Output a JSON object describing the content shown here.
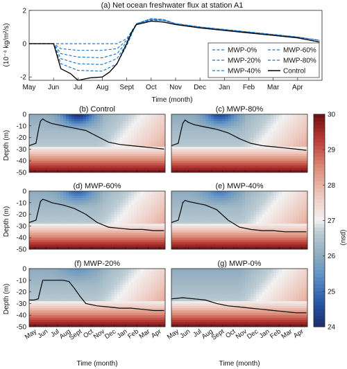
{
  "colors": {
    "control": "#000000",
    "mwp_dashed": "#1f78c8",
    "cmap_low": "#1e2d6b",
    "cmap_mid": "#f2f2f2",
    "cmap_high": "#6b0f12"
  },
  "chart_data": [
    {
      "type": "line",
      "title": "(a) Net ocean freshwater flux at station A1",
      "xlabel": "Time (month)",
      "ylabel": "(10⁻⁴ kg/m²/s)",
      "ylim": [
        -2.2,
        2
      ],
      "yticks": [
        -2,
        0,
        2
      ],
      "month_ticks": [
        "May",
        "Jun",
        "Jul",
        "Aug",
        "Sept",
        "Oct",
        "Nov",
        "Dec",
        "Jan",
        "Feb",
        "Mar",
        "Apr"
      ],
      "legend_position": "lower-right",
      "series": [
        {
          "name": "MWP-0%",
          "style": "dashed",
          "x": [
            0,
            1,
            1.3,
            2,
            3,
            3.6,
            4,
            4.4,
            5,
            5.5,
            6,
            7,
            8,
            9,
            10,
            11,
            11.9
          ],
          "y": [
            0,
            0,
            0,
            0,
            0,
            0,
            0.3,
            1.2,
            1.4,
            1.4,
            1.2,
            1.0,
            0.85,
            0.7,
            0.55,
            0.4,
            0.2
          ]
        },
        {
          "name": "MWP-20%",
          "style": "dashed",
          "x": [
            0,
            1,
            1.3,
            2,
            3,
            3.6,
            4,
            4.4,
            5,
            5.5,
            6,
            7,
            8,
            9,
            10,
            11,
            11.9
          ],
          "y": [
            0,
            0,
            -0.3,
            -0.4,
            -0.4,
            -0.3,
            0.2,
            1.2,
            1.5,
            1.45,
            1.2,
            1.0,
            0.85,
            0.7,
            0.55,
            0.4,
            0.2
          ]
        },
        {
          "name": "MWP-40%",
          "style": "dashed",
          "x": [
            0,
            1,
            1.3,
            2,
            3,
            3.6,
            4,
            4.4,
            5,
            5.5,
            6,
            7,
            8,
            9,
            10,
            11,
            11.9
          ],
          "y": [
            0,
            0,
            -0.6,
            -0.8,
            -0.85,
            -0.6,
            0.1,
            1.2,
            1.5,
            1.45,
            1.2,
            1.0,
            0.85,
            0.7,
            0.55,
            0.4,
            0.2
          ]
        },
        {
          "name": "MWP-60%",
          "style": "dashed",
          "x": [
            0,
            1,
            1.3,
            2,
            3,
            3.6,
            4,
            4.4,
            5,
            5.5,
            6,
            7,
            8,
            9,
            10,
            11,
            11.9
          ],
          "y": [
            0,
            0,
            -0.9,
            -1.2,
            -1.25,
            -0.9,
            0.0,
            1.2,
            1.45,
            1.4,
            1.2,
            1.0,
            0.85,
            0.7,
            0.55,
            0.4,
            0.2
          ]
        },
        {
          "name": "MWP-80%",
          "style": "dashed",
          "x": [
            0,
            1,
            1.3,
            2,
            3,
            3.6,
            4,
            4.4,
            5,
            5.5,
            6,
            7,
            8,
            9,
            10,
            11,
            11.9
          ],
          "y": [
            0,
            0,
            -1.2,
            -1.6,
            -1.65,
            -1.2,
            -0.1,
            1.2,
            1.45,
            1.4,
            1.2,
            1.0,
            0.85,
            0.7,
            0.55,
            0.4,
            0.2
          ]
        },
        {
          "name": "Control",
          "style": "solid",
          "x": [
            0,
            1,
            1.3,
            1.7,
            2,
            2.5,
            3,
            3.3,
            3.6,
            3.8,
            4,
            4.2,
            4.4,
            5,
            5.5,
            6,
            7,
            8,
            9,
            10,
            11,
            11.9
          ],
          "y": [
            0,
            0,
            -1.5,
            -1.8,
            -2.2,
            -2.05,
            -2.0,
            -1.7,
            -1.2,
            -0.6,
            0.0,
            0.7,
            1.15,
            1.35,
            1.3,
            1.15,
            0.95,
            0.8,
            0.65,
            0.5,
            0.35,
            0.1
          ]
        }
      ]
    },
    {
      "type": "heatmap",
      "panels": [
        {
          "title": "(b) Control",
          "mld_x": [
            0,
            0.3,
            0.6,
            0.85,
            1.0,
            1.2,
            1.5,
            2,
            3,
            4,
            5,
            6,
            7,
            8,
            9,
            10,
            11,
            11.9
          ],
          "mld_y": [
            -27,
            -26,
            -25,
            -12,
            -6,
            -4,
            -6,
            -8,
            -10,
            -12,
            -14,
            -19,
            -24,
            -26,
            -27,
            -28,
            -29,
            -30
          ]
        },
        {
          "title": "(c) MWP-80%",
          "mld_x": [
            0,
            0.3,
            0.6,
            0.85,
            1.0,
            1.2,
            1.5,
            2,
            3,
            4,
            5,
            6,
            7,
            8,
            9,
            10,
            11,
            11.9
          ],
          "mld_y": [
            -27,
            -26,
            -25,
            -14,
            -8,
            -5,
            -7,
            -9,
            -11,
            -13,
            -16,
            -21,
            -25,
            -27,
            -28,
            -29,
            -30,
            -31
          ]
        },
        {
          "title": "(d) MWP-60%",
          "mld_x": [
            0,
            0.3,
            0.6,
            0.85,
            1.0,
            1.2,
            1.5,
            2,
            3,
            4,
            5,
            6,
            7,
            8,
            9,
            10,
            11,
            11.9
          ],
          "mld_y": [
            -27,
            -26,
            -25,
            -15,
            -9,
            -7,
            -8,
            -10,
            -12,
            -15,
            -20,
            -27,
            -31,
            -32,
            -33,
            -33,
            -34,
            -34
          ]
        },
        {
          "title": "(e) MWP-40%",
          "mld_x": [
            0,
            0.3,
            0.6,
            0.85,
            1.0,
            1.2,
            1.5,
            2,
            3,
            4,
            5,
            6,
            7,
            8,
            9,
            10,
            11,
            11.9
          ],
          "mld_y": [
            -27,
            -26,
            -25,
            -16,
            -10,
            -8,
            -9,
            -10,
            -12,
            -16,
            -25,
            -31,
            -33,
            -34,
            -34,
            -35,
            -35,
            -35
          ]
        },
        {
          "title": "(f) MWP-20%",
          "mld_x": [
            0,
            0.4,
            0.8,
            1.0,
            1.2,
            2,
            3,
            3.5,
            4,
            4.5,
            5,
            6,
            7,
            8,
            9,
            10,
            11,
            11.9
          ],
          "mld_y": [
            -27,
            -27,
            -26,
            -18,
            -10,
            -10,
            -10,
            -11,
            -17,
            -24,
            -30,
            -32,
            -33,
            -34,
            -34,
            -35,
            -36,
            -36
          ]
        },
        {
          "title": "(g) MWP-0%",
          "mld_x": [
            0,
            1,
            2,
            3,
            4,
            5,
            6,
            7,
            8,
            9,
            10,
            11,
            11.9
          ],
          "mld_y": [
            -26,
            -25,
            -26,
            -27,
            -30,
            -32,
            -33,
            -34,
            -35,
            -36,
            -37,
            -38,
            -38
          ]
        }
      ],
      "ylabel": "Depth (m)",
      "yticks": [
        0,
        -10,
        -20,
        -30,
        -40,
        -50
      ],
      "xlabel": "Time (month)",
      "month_ticks": [
        "May",
        "Jun",
        "Jul",
        "Aug",
        "Sept",
        "Oct",
        "Nov",
        "Dec",
        "Jan",
        "Feb",
        "Mar",
        "Apr"
      ],
      "colorbar": {
        "label": "(psu)",
        "range": [
          24,
          30
        ],
        "ticks": [
          24,
          25,
          26,
          27,
          28,
          29,
          30
        ]
      }
    }
  ]
}
